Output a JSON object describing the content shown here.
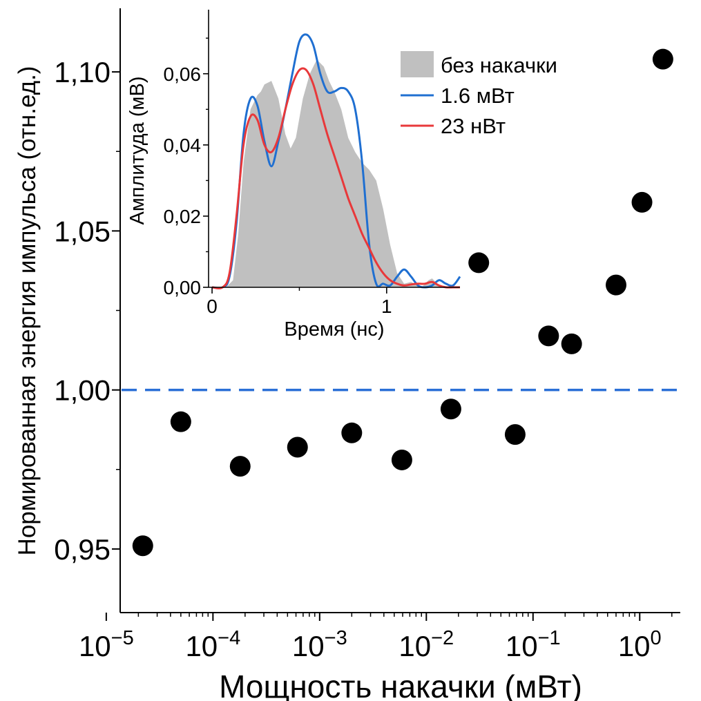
{
  "chart_data": [
    {
      "type": "scatter",
      "role": "main",
      "xlabel": "Мощность накачки (мВт)",
      "ylabel": "Нормированная энергия импульса (отн.ед.)",
      "xscale": "log",
      "xlim": [
        1.35e-05,
        2.4
      ],
      "ylim": [
        0.93,
        1.12
      ],
      "x_ticks": [
        {
          "value": 1e-05,
          "base": "10",
          "exp": "−5"
        },
        {
          "value": 0.0001,
          "base": "10",
          "exp": "−4"
        },
        {
          "value": 0.001,
          "base": "10",
          "exp": "−3"
        },
        {
          "value": 0.01,
          "base": "10",
          "exp": "−2"
        },
        {
          "value": 0.1,
          "base": "10",
          "exp": "−1"
        },
        {
          "value": 1,
          "base": "10",
          "exp": "0"
        }
      ],
      "y_ticks": [
        {
          "value": 0.95,
          "label": "0,95"
        },
        {
          "value": 1.0,
          "label": "1,00"
        },
        {
          "value": 1.05,
          "label": "1,05"
        },
        {
          "value": 1.1,
          "label": "1,10"
        }
      ],
      "y_minor_ticks": [
        0.975,
        1.025,
        1.075
      ],
      "reference_line": {
        "y": 1.0,
        "style": "dashed",
        "color": "#2a6fd6"
      },
      "point_color": "#000000",
      "points": [
        {
          "x": 2.2e-05,
          "y": 0.951
        },
        {
          "x": 5e-05,
          "y": 0.99
        },
        {
          "x": 0.00018,
          "y": 0.976
        },
        {
          "x": 0.00062,
          "y": 0.982
        },
        {
          "x": 0.002,
          "y": 0.9865
        },
        {
          "x": 0.0059,
          "y": 0.978
        },
        {
          "x": 0.017,
          "y": 0.994
        },
        {
          "x": 0.031,
          "y": 1.04
        },
        {
          "x": 0.068,
          "y": 0.986
        },
        {
          "x": 0.14,
          "y": 1.017
        },
        {
          "x": 0.23,
          "y": 1.0145
        },
        {
          "x": 0.6,
          "y": 1.033
        },
        {
          "x": 1.05,
          "y": 1.059
        },
        {
          "x": 1.65,
          "y": 1.104
        }
      ],
      "grid": false
    },
    {
      "type": "line",
      "role": "inset",
      "xlabel": "Время (нс)",
      "ylabel": "Амплитуда (мВ)",
      "xlim": [
        -0.02,
        1.42
      ],
      "ylim": [
        0,
        0.078
      ],
      "x_ticks": [
        {
          "value": 0,
          "label": "0"
        },
        {
          "value": 1,
          "label": "1"
        }
      ],
      "y_ticks": [
        {
          "value": 0.0,
          "label": "0,00"
        },
        {
          "value": 0.02,
          "label": "0,02"
        },
        {
          "value": 0.04,
          "label": "0,04"
        },
        {
          "value": 0.06,
          "label": "0,06"
        }
      ],
      "legend_position": "top-right",
      "series": [
        {
          "name": "без накачки",
          "kind": "area",
          "color": "#c0c0c0",
          "x": [
            0,
            0.08,
            0.12,
            0.15,
            0.18,
            0.22,
            0.26,
            0.28,
            0.3,
            0.34,
            0.38,
            0.42,
            0.45,
            0.48,
            0.52,
            0.56,
            0.6,
            0.64,
            0.67,
            0.7,
            0.74,
            0.78,
            0.82,
            0.86,
            0.9,
            0.94,
            0.98,
            1.02,
            1.06,
            1.1,
            1.14,
            1.18,
            1.2,
            1.24,
            1.26,
            1.3,
            1.34,
            1.42
          ],
          "y": [
            0,
            0,
            0.002,
            0.015,
            0.035,
            0.05,
            0.054,
            0.055,
            0.057,
            0.058,
            0.053,
            0.043,
            0.039,
            0.042,
            0.053,
            0.06,
            0.064,
            0.062,
            0.058,
            0.055,
            0.05,
            0.042,
            0.038,
            0.035,
            0.033,
            0.03,
            0.022,
            0.012,
            0.004,
            0.001,
            0.0015,
            0.0005,
            0,
            0.002,
            0.0025,
            0.0005,
            0,
            0
          ]
        },
        {
          "name": "1.6 мВт",
          "kind": "line",
          "color": "#1f6fd1",
          "x": [
            0,
            0.06,
            0.1,
            0.14,
            0.18,
            0.22,
            0.26,
            0.3,
            0.34,
            0.38,
            0.42,
            0.46,
            0.5,
            0.54,
            0.58,
            0.62,
            0.66,
            0.7,
            0.74,
            0.78,
            0.82,
            0.86,
            0.9,
            0.94,
            0.98,
            1.02,
            1.06,
            1.1,
            1.14,
            1.18,
            1.22,
            1.26,
            1.3,
            1.34,
            1.38,
            1.42
          ],
          "y": [
            0,
            0,
            0.003,
            0.018,
            0.043,
            0.053,
            0.051,
            0.041,
            0.034,
            0.041,
            0.05,
            0.06,
            0.069,
            0.071,
            0.068,
            0.06,
            0.055,
            0.055,
            0.056,
            0.055,
            0.05,
            0.035,
            0.012,
            0.001,
            0.001,
            0.0005,
            0.003,
            0.005,
            0.003,
            0.0005,
            0,
            0.0005,
            0.002,
            0.001,
            0.0005,
            0.003
          ]
        },
        {
          "name": "23 нВт",
          "kind": "line",
          "color": "#e8383a",
          "x": [
            0,
            0.06,
            0.1,
            0.14,
            0.18,
            0.22,
            0.26,
            0.3,
            0.34,
            0.38,
            0.42,
            0.46,
            0.5,
            0.54,
            0.58,
            0.62,
            0.66,
            0.7,
            0.74,
            0.78,
            0.82,
            0.86,
            0.9,
            0.94,
            0.98,
            1.02,
            1.06,
            1.1,
            1.14,
            1.18,
            1.22,
            1.26,
            1.3,
            1.34,
            1.38,
            1.42
          ],
          "y": [
            0,
            0,
            0.004,
            0.02,
            0.04,
            0.048,
            0.047,
            0.04,
            0.038,
            0.042,
            0.05,
            0.057,
            0.061,
            0.061,
            0.057,
            0.05,
            0.043,
            0.037,
            0.031,
            0.025,
            0.02,
            0.015,
            0.011,
            0.007,
            0.004,
            0.002,
            0.001,
            0.0005,
            0.0008,
            0.001,
            0.001,
            0.0015,
            0.0005,
            0,
            0,
            0
          ]
        }
      ],
      "grid": false
    }
  ]
}
